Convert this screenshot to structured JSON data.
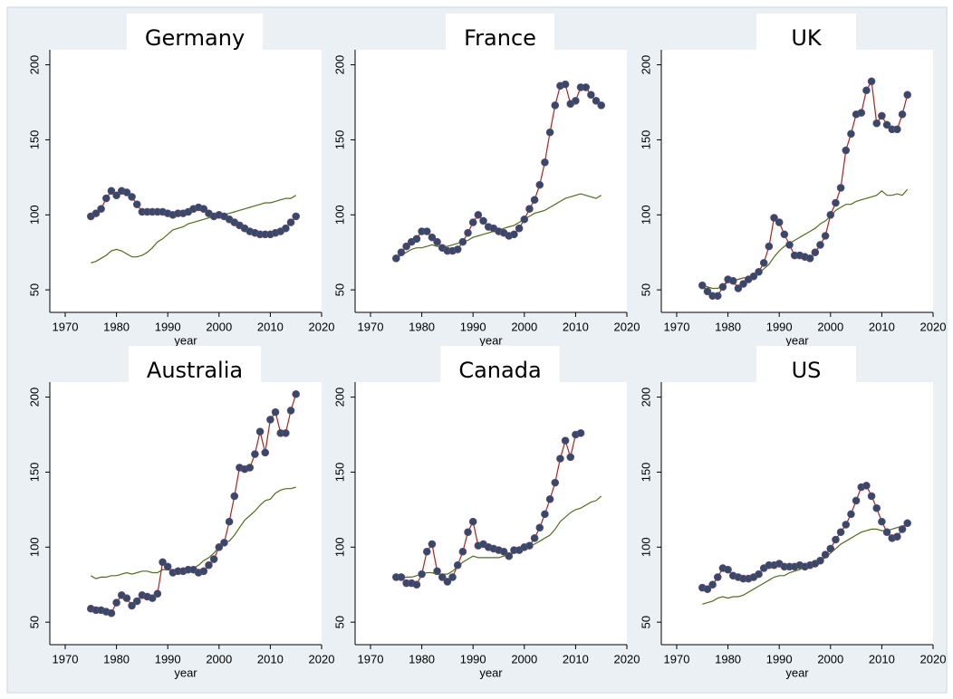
{
  "chart_data": [
    {
      "type": "line",
      "title": "Germany",
      "x_label": "year",
      "x": [
        1975,
        1976,
        1977,
        1978,
        1979,
        1980,
        1981,
        1982,
        1983,
        1984,
        1985,
        1986,
        1987,
        1988,
        1989,
        1990,
        1991,
        1992,
        1993,
        1994,
        1995,
        1996,
        1997,
        1998,
        1999,
        2000,
        2001,
        2002,
        2003,
        2004,
        2005,
        2006,
        2007,
        2008,
        2009,
        2010,
        2011,
        2012,
        2013,
        2014,
        2015
      ],
      "series": [
        {
          "color": "#a8261f",
          "marker_color": "#34496b",
          "values": [
            99,
            101,
            104,
            111,
            116,
            113,
            116,
            115,
            112,
            107,
            102,
            102,
            102,
            102,
            102,
            101,
            100,
            101,
            101,
            102,
            104,
            105,
            104,
            101,
            99,
            100,
            99,
            97,
            95,
            93,
            91,
            89,
            88,
            87,
            87,
            87,
            88,
            89,
            91,
            95,
            99
          ]
        },
        {
          "color": "#4f6e1c",
          "values": [
            68,
            69,
            71,
            73,
            76,
            77,
            76,
            74,
            72,
            72,
            73,
            75,
            78,
            82,
            84,
            87,
            90,
            91,
            92,
            94,
            95,
            96,
            97,
            98,
            99,
            100,
            100,
            101,
            102,
            103,
            104,
            105,
            106,
            107,
            108,
            108,
            109,
            110,
            111,
            111,
            113
          ]
        }
      ],
      "xlim": [
        1967,
        2020
      ],
      "xticks": [
        1970,
        1980,
        1990,
        2000,
        2010,
        2020
      ],
      "ylim": [
        35,
        210
      ],
      "yticks": [
        50,
        100,
        150,
        200
      ]
    },
    {
      "type": "line",
      "title": "France",
      "x_label": "year",
      "x": [
        1975,
        1976,
        1977,
        1978,
        1979,
        1980,
        1981,
        1982,
        1983,
        1984,
        1985,
        1986,
        1987,
        1988,
        1989,
        1990,
        1991,
        1992,
        1993,
        1994,
        1995,
        1996,
        1997,
        1998,
        1999,
        2000,
        2001,
        2002,
        2003,
        2004,
        2005,
        2006,
        2007,
        2008,
        2009,
        2010,
        2011,
        2012,
        2013,
        2014,
        2015
      ],
      "series": [
        {
          "color": "#a8261f",
          "marker_color": "#34496b",
          "values": [
            71,
            75,
            79,
            82,
            84,
            89,
            89,
            85,
            82,
            78,
            76,
            76,
            77,
            82,
            88,
            95,
            100,
            96,
            92,
            91,
            89,
            88,
            86,
            87,
            91,
            97,
            104,
            110,
            120,
            135,
            155,
            173,
            186,
            187,
            174,
            176,
            185,
            185,
            180,
            176,
            173
          ]
        },
        {
          "color": "#4f6e1c",
          "values": [
            71,
            73,
            75,
            77,
            78,
            78,
            79,
            80,
            79,
            79,
            79,
            80,
            81,
            82,
            83,
            85,
            86,
            87,
            88,
            89,
            90,
            91,
            92,
            93,
            95,
            97,
            99,
            101,
            102,
            103,
            105,
            107,
            109,
            111,
            112,
            113,
            114,
            113,
            112,
            111,
            113
          ]
        }
      ],
      "xlim": [
        1967,
        2020
      ],
      "xticks": [
        1970,
        1980,
        1990,
        2000,
        2010,
        2020
      ],
      "ylim": [
        35,
        210
      ],
      "yticks": [
        50,
        100,
        150,
        200
      ]
    },
    {
      "type": "line",
      "title": "UK",
      "x_label": "year",
      "x": [
        1975,
        1976,
        1977,
        1978,
        1979,
        1980,
        1981,
        1982,
        1983,
        1984,
        1985,
        1986,
        1987,
        1988,
        1989,
        1990,
        1991,
        1992,
        1993,
        1994,
        1995,
        1996,
        1997,
        1998,
        1999,
        2000,
        2001,
        2002,
        2003,
        2004,
        2005,
        2006,
        2007,
        2008,
        2009,
        2010,
        2011,
        2012,
        2013,
        2014,
        2015
      ],
      "series": [
        {
          "color": "#a8261f",
          "marker_color": "#34496b",
          "values": [
            53,
            49,
            46,
            46,
            52,
            57,
            56,
            51,
            54,
            57,
            59,
            62,
            68,
            79,
            98,
            95,
            87,
            80,
            73,
            73,
            72,
            71,
            75,
            80,
            86,
            100,
            108,
            118,
            143,
            154,
            167,
            168,
            183,
            189,
            161,
            166,
            160,
            157,
            157,
            167,
            180
          ]
        },
        {
          "color": "#4f6e1c",
          "values": [
            53,
            52,
            51,
            51,
            53,
            55,
            56,
            57,
            58,
            58,
            59,
            61,
            64,
            67,
            72,
            76,
            79,
            81,
            83,
            85,
            87,
            89,
            91,
            94,
            96,
            99,
            103,
            105,
            107,
            107,
            109,
            110,
            111,
            112,
            113,
            116,
            113,
            113,
            114,
            113,
            117
          ]
        }
      ],
      "xlim": [
        1967,
        2020
      ],
      "xticks": [
        1970,
        1980,
        1990,
        2000,
        2010,
        2020
      ],
      "ylim": [
        35,
        210
      ],
      "yticks": [
        50,
        100,
        150,
        200
      ]
    },
    {
      "type": "line",
      "title": "Australia",
      "x_label": "year",
      "x": [
        1975,
        1976,
        1977,
        1978,
        1979,
        1980,
        1981,
        1982,
        1983,
        1984,
        1985,
        1986,
        1987,
        1988,
        1989,
        1990,
        1991,
        1992,
        1993,
        1994,
        1995,
        1996,
        1997,
        1998,
        1999,
        2000,
        2001,
        2002,
        2003,
        2004,
        2005,
        2006,
        2007,
        2008,
        2009,
        2010,
        2011,
        2012,
        2013,
        2014,
        2015
      ],
      "series": [
        {
          "color": "#a8261f",
          "marker_color": "#34496b",
          "values": [
            59,
            58,
            58,
            57,
            56,
            63,
            68,
            66,
            61,
            64,
            68,
            67,
            66,
            69,
            90,
            87,
            83,
            84,
            84,
            85,
            85,
            83,
            84,
            88,
            92,
            100,
            103,
            117,
            134,
            153,
            152,
            153,
            162,
            177,
            163,
            185,
            190,
            176,
            176,
            191,
            202
          ]
        },
        {
          "color": "#4f6e1c",
          "values": [
            81,
            79,
            80,
            80,
            81,
            81,
            82,
            83,
            82,
            83,
            84,
            84,
            83,
            83,
            85,
            85,
            84,
            84,
            84,
            85,
            86,
            88,
            91,
            93,
            96,
            100,
            104,
            104,
            108,
            113,
            118,
            121,
            124,
            128,
            131,
            132,
            136,
            138,
            139,
            139,
            140
          ]
        }
      ],
      "xlim": [
        1967,
        2020
      ],
      "xticks": [
        1970,
        1980,
        1990,
        2000,
        2010,
        2020
      ],
      "ylim": [
        35,
        210
      ],
      "yticks": [
        50,
        100,
        150,
        200
      ]
    },
    {
      "type": "line",
      "title": "Canada",
      "x_label": "year",
      "x": [
        1975,
        1976,
        1977,
        1978,
        1979,
        1980,
        1981,
        1982,
        1983,
        1984,
        1985,
        1986,
        1987,
        1988,
        1989,
        1990,
        1991,
        1992,
        1993,
        1994,
        1995,
        1996,
        1997,
        1998,
        1999,
        2000,
        2001,
        2002,
        2003,
        2004,
        2005,
        2006,
        2007,
        2008,
        2009,
        2010,
        2011,
        2012,
        2013,
        2014,
        2015
      ],
      "series": [
        {
          "color": "#a8261f",
          "marker_color": "#34496b",
          "values": [
            80,
            80,
            76,
            76,
            75,
            82,
            97,
            102,
            84,
            80,
            77,
            80,
            88,
            97,
            110,
            117,
            101,
            102,
            100,
            99,
            98,
            97,
            94,
            98,
            98,
            100,
            101,
            106,
            113,
            122,
            132,
            143,
            159,
            171,
            160,
            175,
            176,
            null,
            null,
            null,
            null
          ]
        },
        {
          "color": "#4f6e1c",
          "values": [
            78,
            79,
            80,
            80,
            81,
            82,
            83,
            83,
            82,
            82,
            82,
            84,
            87,
            90,
            92,
            94,
            93,
            93,
            93,
            93,
            93,
            94,
            95,
            96,
            98,
            99,
            101,
            102,
            104,
            106,
            108,
            112,
            117,
            120,
            123,
            125,
            126,
            128,
            130,
            131,
            134
          ]
        }
      ],
      "xlim": [
        1967,
        2020
      ],
      "xticks": [
        1970,
        1980,
        1990,
        2000,
        2010,
        2020
      ],
      "ylim": [
        35,
        210
      ],
      "yticks": [
        50,
        100,
        150,
        200
      ]
    },
    {
      "type": "line",
      "title": "US",
      "x_label": "year",
      "x": [
        1975,
        1976,
        1977,
        1978,
        1979,
        1980,
        1981,
        1982,
        1983,
        1984,
        1985,
        1986,
        1987,
        1988,
        1989,
        1990,
        1991,
        1992,
        1993,
        1994,
        1995,
        1996,
        1997,
        1998,
        1999,
        2000,
        2001,
        2002,
        2003,
        2004,
        2005,
        2006,
        2007,
        2008,
        2009,
        2010,
        2011,
        2012,
        2013,
        2014,
        2015
      ],
      "series": [
        {
          "color": "#a8261f",
          "marker_color": "#34496b",
          "values": [
            73,
            72,
            75,
            80,
            86,
            85,
            81,
            80,
            79,
            79,
            80,
            82,
            86,
            88,
            88,
            89,
            87,
            87,
            87,
            88,
            87,
            88,
            89,
            91,
            95,
            99,
            105,
            110,
            115,
            122,
            131,
            140,
            141,
            134,
            126,
            117,
            110,
            106,
            107,
            112,
            116
          ]
        },
        {
          "color": "#4f6e1c",
          "values": [
            62,
            63,
            64,
            66,
            67,
            66,
            67,
            67,
            68,
            70,
            72,
            74,
            76,
            78,
            80,
            81,
            81,
            83,
            84,
            85,
            87,
            89,
            90,
            91,
            93,
            96,
            99,
            102,
            104,
            106,
            108,
            110,
            111,
            112,
            112,
            111,
            111,
            112,
            113,
            114,
            115
          ]
        }
      ],
      "xlim": [
        1967,
        2020
      ],
      "xticks": [
        1970,
        1980,
        1990,
        2000,
        2010,
        2020
      ],
      "ylim": [
        35,
        210
      ],
      "yticks": [
        50,
        100,
        150,
        200
      ]
    }
  ]
}
